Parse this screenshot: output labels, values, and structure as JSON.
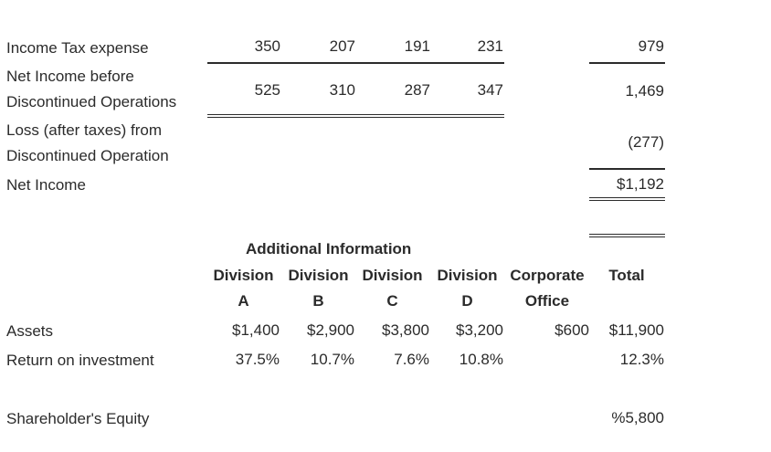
{
  "income": {
    "tax": {
      "label": "Income Tax expense",
      "values": [
        "350",
        "207",
        "191",
        "231"
      ],
      "total": "979"
    },
    "before_disc": {
      "label_line1": "Net Income before",
      "label_line2": "Discontinued Operations",
      "values": [
        "525",
        "310",
        "287",
        "347"
      ],
      "total": "1,469"
    },
    "loss": {
      "label_line1": "Loss (after taxes) from",
      "label_line2": "Discontinued Operation",
      "total": "(277)"
    },
    "net": {
      "label": "Net Income",
      "total": "$1,192"
    }
  },
  "additional": {
    "title": "Additional Information",
    "headers": [
      {
        "line1": "Division",
        "line2": "A"
      },
      {
        "line1": "Division",
        "line2": "B"
      },
      {
        "line1": "Division",
        "line2": "C"
      },
      {
        "line1": "Division",
        "line2": "D"
      },
      {
        "line1": "Corporate",
        "line2": "Office"
      },
      {
        "line1": "Total",
        "line2": ""
      }
    ],
    "assets": {
      "label": "Assets",
      "values": [
        "$1,400",
        "$2,900",
        "$3,800",
        "$3,200"
      ],
      "corporate": "$600",
      "total": "$11,900"
    },
    "roi": {
      "label": "Return on investment",
      "values": [
        "37.5%",
        "10.7%",
        "7.6%",
        "10.8%"
      ],
      "total": "12.3%"
    },
    "equity": {
      "label": "Shareholder's Equity",
      "total": "%5,800"
    }
  }
}
